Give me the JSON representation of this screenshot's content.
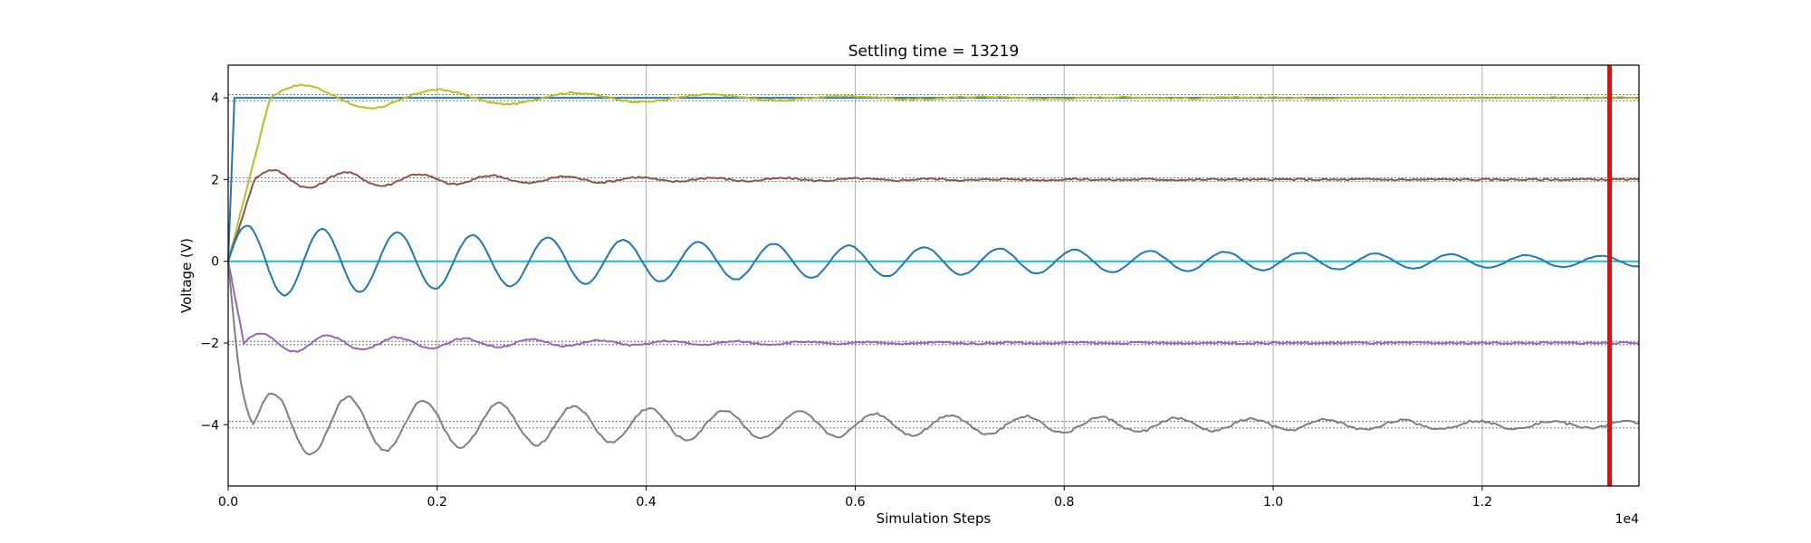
{
  "chart_data": {
    "type": "line",
    "title": "Settling time = 13219",
    "xlabel": "Simulation Steps",
    "ylabel": "Voltage (V)",
    "x_offset_label": "1e4",
    "xlim": [
      0,
      13500
    ],
    "ylim": [
      -5.5,
      4.8
    ],
    "xticks": [
      0,
      2000,
      4000,
      6000,
      8000,
      10000,
      12000
    ],
    "xtick_labels": [
      "0.0",
      "0.2",
      "0.4",
      "0.6",
      "0.8",
      "1.0",
      "1.2"
    ],
    "yticks": [
      -4,
      -2,
      0,
      2,
      4
    ],
    "ytick_labels": [
      "−4",
      "−2",
      "0",
      "2",
      "4"
    ],
    "grid": true,
    "settling_time": 13219,
    "settling_line_color": "#ff0000",
    "series": [
      {
        "target": 4,
        "color": "#bcbd22",
        "amp": 0.35,
        "decay": 2800,
        "period": 1300,
        "noise": 0.04,
        "init": 0,
        "rise": 400
      },
      {
        "target": 2,
        "color": "#8c564b",
        "amp": 0.25,
        "decay": 2500,
        "period": 700,
        "noise": 0.05,
        "init": 0,
        "rise": 250
      },
      {
        "target": 0,
        "color": "#1f77b4",
        "amp": 0.9,
        "decay": 7000,
        "period": 720,
        "noise": 0.02,
        "init": 0,
        "rise": 0
      },
      {
        "target": -2,
        "color": "#9467bd",
        "amp": 0.25,
        "decay": 2500,
        "period": 650,
        "noise": 0.04,
        "init": 0,
        "rise": 150
      },
      {
        "target": -4,
        "color": "#7f7f7f",
        "amp": 0.8,
        "decay": 5500,
        "period": 720,
        "noise": 0.06,
        "init": 0,
        "rise": 250
      }
    ],
    "reference_lines": [
      {
        "value": 4,
        "color": "#1f77b4"
      },
      {
        "value": 0,
        "color": "#17becf"
      }
    ],
    "tolerance_bands": [
      4,
      2,
      -2,
      -4
    ]
  }
}
